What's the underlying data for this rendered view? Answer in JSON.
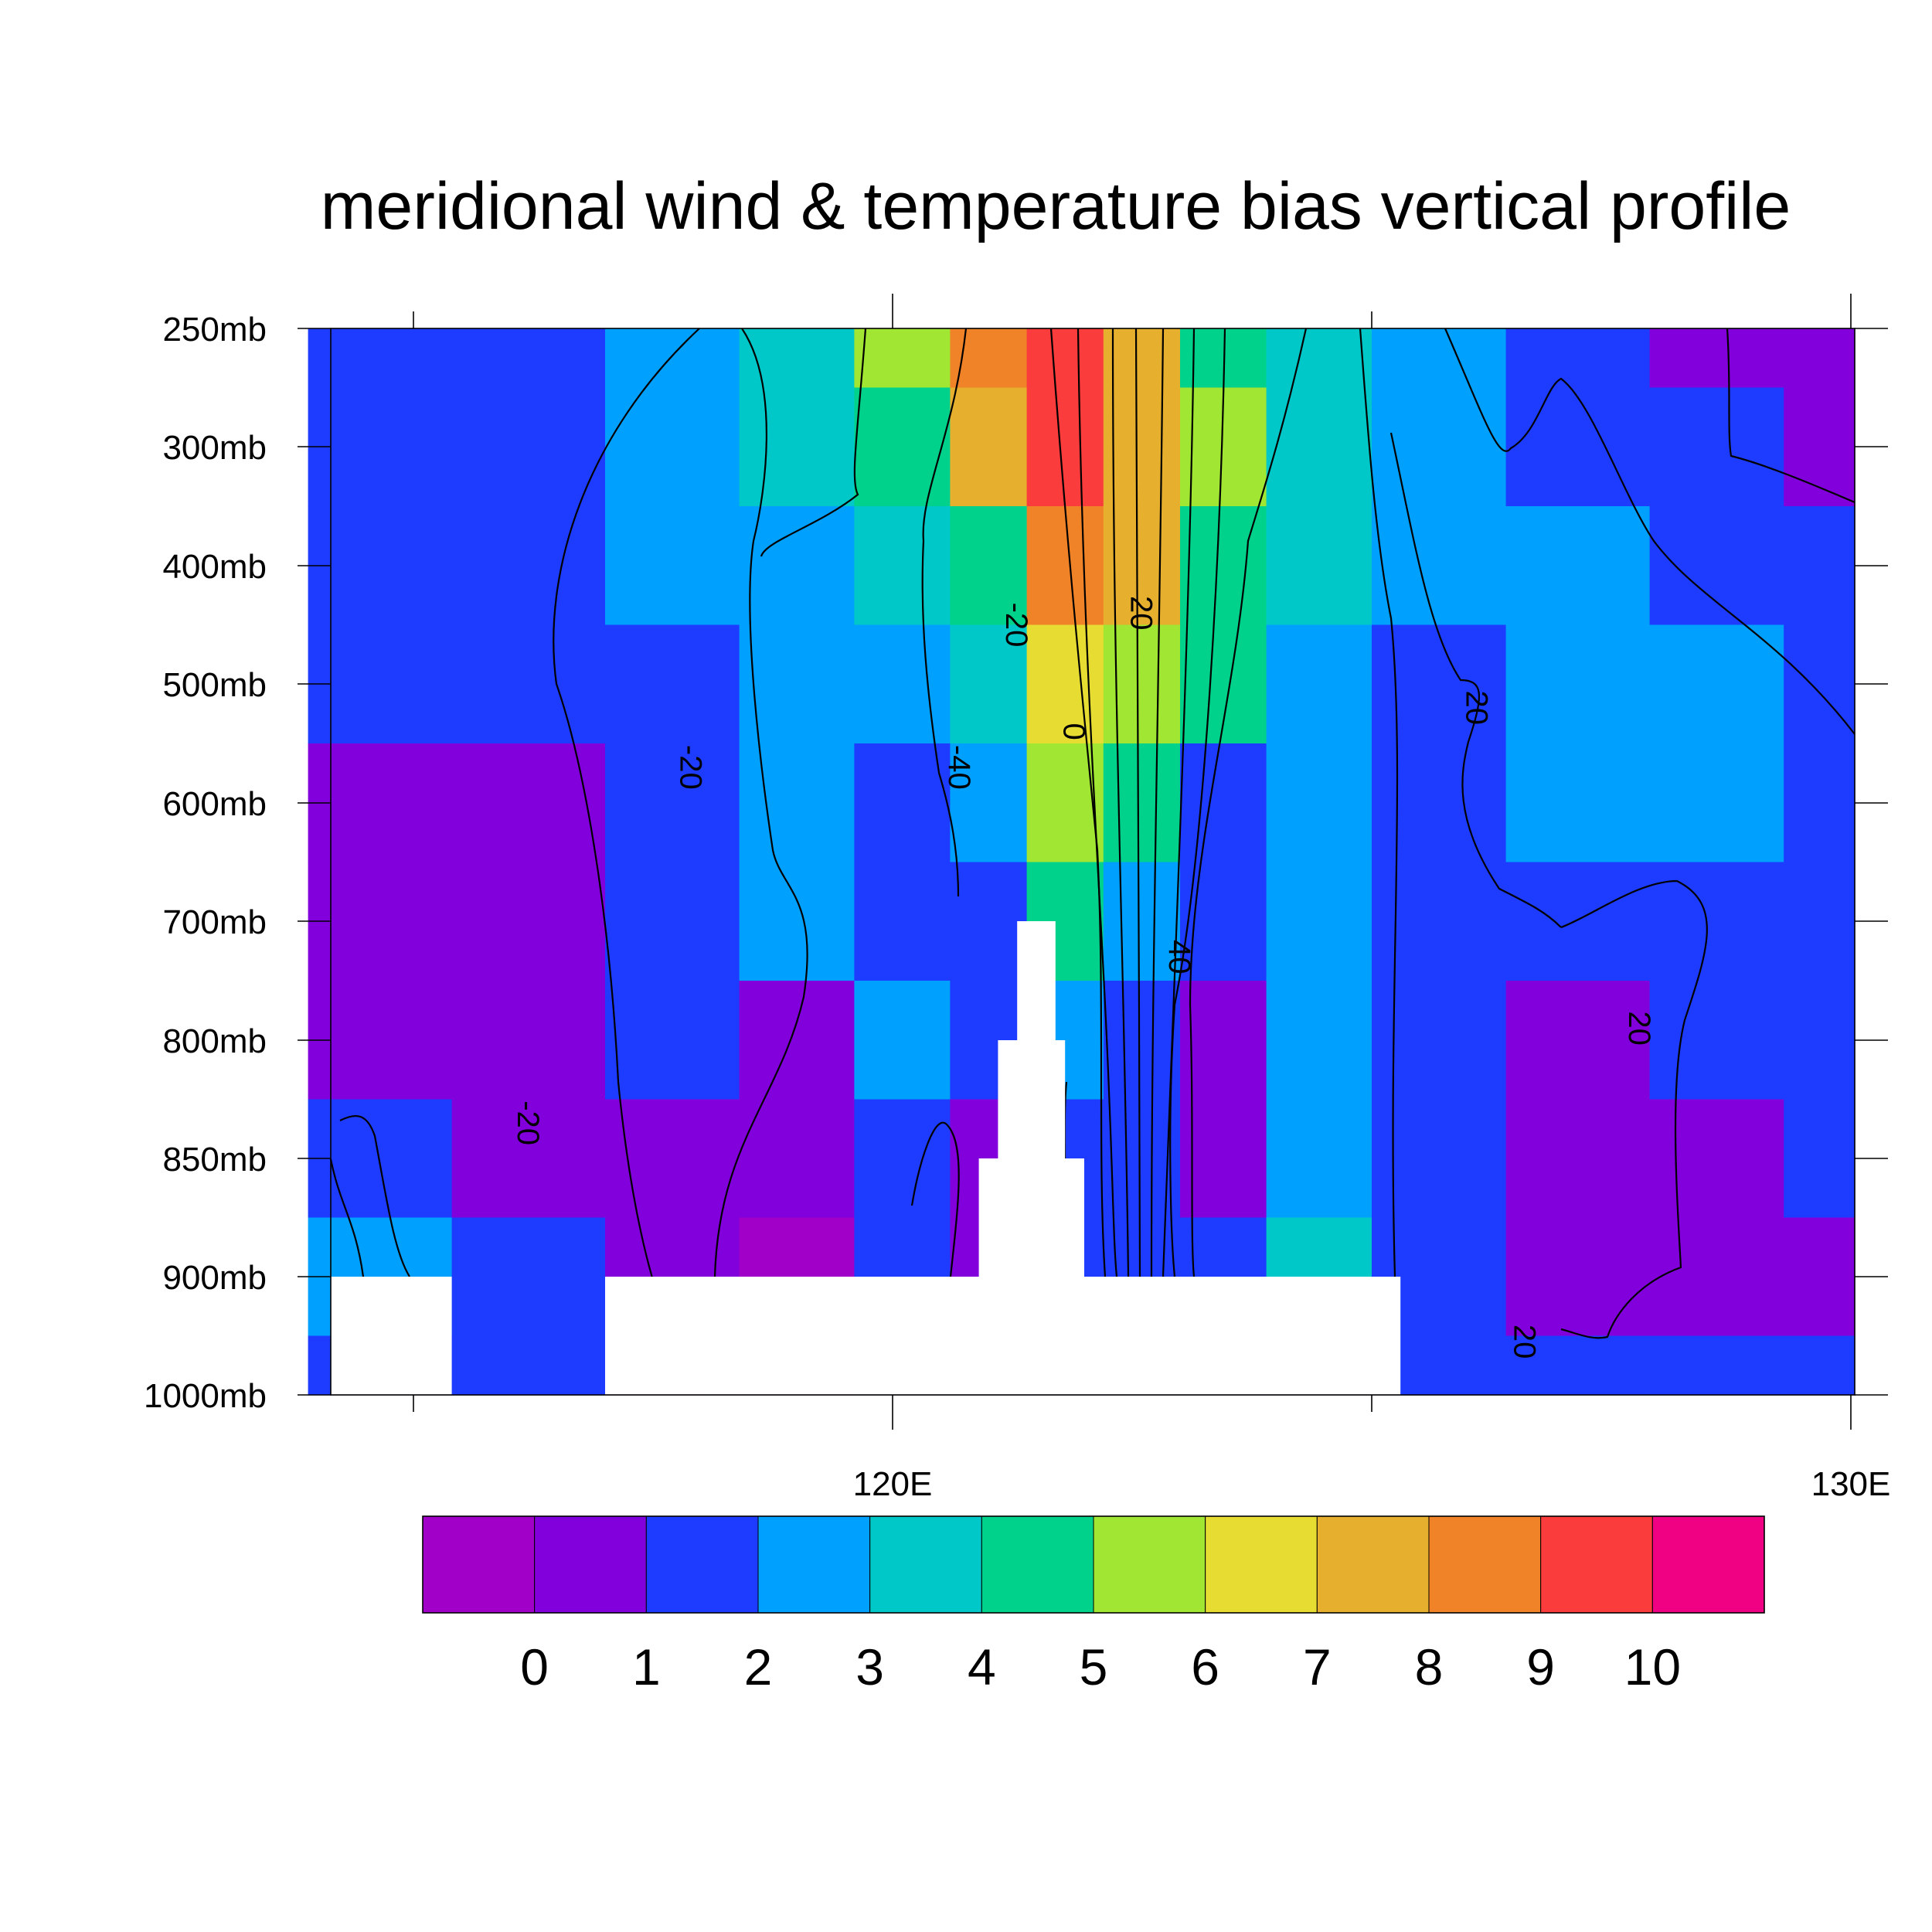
{
  "chart_data": {
    "type": "heatmap",
    "title": "meridional wind & temperature bias vertical profile",
    "xlabel": "",
    "ylabel": "",
    "x_tick_labels": [
      "120E",
      "130E"
    ],
    "y_tick_labels": [
      "250mb",
      "300mb",
      "400mb",
      "500mb",
      "600mb",
      "700mb",
      "800mb",
      "850mb",
      "900mb",
      "1000mb"
    ],
    "xlim_lon": [
      113.0,
      130.1
    ],
    "filled_field": {
      "x_lon": [
        113.2,
        114.6,
        116.2,
        117.8,
        119.0,
        120.2,
        121.0,
        121.8,
        122.6,
        123.4,
        124.4,
        125.6,
        127.2,
        128.6,
        130.0
      ],
      "y_level": [
        "250mb",
        "300mb",
        "400mb",
        "500mb",
        "600mb",
        "700mb",
        "800mb",
        "850mb",
        "900mb",
        "1000mb"
      ],
      "values": [
        [
          0.5,
          1.5,
          1.5,
          2.5,
          3.5,
          5.5,
          8.5,
          9.5,
          7.5,
          4.5,
          3.5,
          2.5,
          1.5,
          0.5,
          0.5
        ],
        [
          0.5,
          1.5,
          1.5,
          2.5,
          3.5,
          4.5,
          7.5,
          9.5,
          7.5,
          5.5,
          3.5,
          2.5,
          1.5,
          1.5,
          0.5
        ],
        [
          1.5,
          1.5,
          1.5,
          2.5,
          2.5,
          3.5,
          4.5,
          8.5,
          7.5,
          4.5,
          3.5,
          2.5,
          2.5,
          1.5,
          1.5
        ],
        [
          1.5,
          1.5,
          1.5,
          1.5,
          2.5,
          2.5,
          3.5,
          6.5,
          5.5,
          4.5,
          2.5,
          1.5,
          2.5,
          2.5,
          1.5
        ],
        [
          1.5,
          0.5,
          0.5,
          1.5,
          2.5,
          1.5,
          2.5,
          5.5,
          4.5,
          1.5,
          2.5,
          1.5,
          2.5,
          2.5,
          1.5
        ],
        [
          0.5,
          0.5,
          0.5,
          1.5,
          2.5,
          1.5,
          1.5,
          4.5,
          2.5,
          1.5,
          2.5,
          1.5,
          1.5,
          1.5,
          1.5
        ],
        [
          0.5,
          0.5,
          0.5,
          1.5,
          0.5,
          2.5,
          1.5,
          2.5,
          1.5,
          0.5,
          2.5,
          1.5,
          0.5,
          1.5,
          1.5
        ],
        [
          1.5,
          1.5,
          0.5,
          0.5,
          0.5,
          1.5,
          0.5,
          1.5,
          1.5,
          0.5,
          2.5,
          1.5,
          0.5,
          0.5,
          1.5
        ],
        [
          1.5,
          2.5,
          1.5,
          0.5,
          -0.5,
          1.5,
          0.5,
          1.5,
          1.5,
          1.5,
          3.5,
          1.5,
          0.5,
          0.5,
          0.5
        ],
        [
          1.5,
          1.5,
          1.5,
          0.5,
          0.5,
          1.5,
          1.5,
          1.5,
          1.5,
          1.5,
          1.5,
          1.5,
          1.5,
          1.5,
          1.5
        ]
      ],
      "missing_terrain": [
        {
          "lon": [
            113.0,
            115.4
          ],
          "top": "900mb"
        },
        {
          "lon": [
            117.0,
            125.3
          ],
          "top": "900mb"
        },
        {
          "lon": [
            120.9,
            122.0
          ],
          "top": "850mb"
        },
        {
          "lon": [
            121.1,
            121.8
          ],
          "top": "800mb"
        },
        {
          "lon": [
            121.3,
            121.7
          ],
          "top": "700mb"
        }
      ]
    },
    "colorbar": {
      "tick_labels": [
        "0",
        "1",
        "2",
        "3",
        "4",
        "5",
        "6",
        "7",
        "8",
        "9",
        "10"
      ],
      "colors": [
        "#a000c8",
        "#8200dc",
        "#1e3cff",
        "#00a0ff",
        "#00c8c8",
        "#00d28c",
        "#a0e632",
        "#e6dc32",
        "#e6af2d",
        "#f08228",
        "#fa3c3c",
        "#f00082"
      ]
    },
    "contour_line_labels": [
      {
        "text": "-20",
        "lon": 121.3,
        "level": "450mb"
      },
      {
        "text": "20",
        "lon": 122.6,
        "level": "440mb"
      },
      {
        "text": "0",
        "lon": 121.9,
        "level": "540mb"
      },
      {
        "text": "-20",
        "lon": 117.9,
        "level": "570mb"
      },
      {
        "text": "-40",
        "lon": 120.7,
        "level": "570mb"
      },
      {
        "text": "20",
        "lon": 126.1,
        "level": "520mb"
      },
      {
        "text": "40",
        "lon": 123.0,
        "level": "730mb"
      },
      {
        "text": "20",
        "lon": 127.8,
        "level": "790mb"
      },
      {
        "text": "-20",
        "lon": 116.2,
        "level": "835mb"
      },
      {
        "text": "20",
        "lon": 126.6,
        "level": "955mb"
      }
    ],
    "grid": false,
    "legend": "colorbar bottom"
  }
}
